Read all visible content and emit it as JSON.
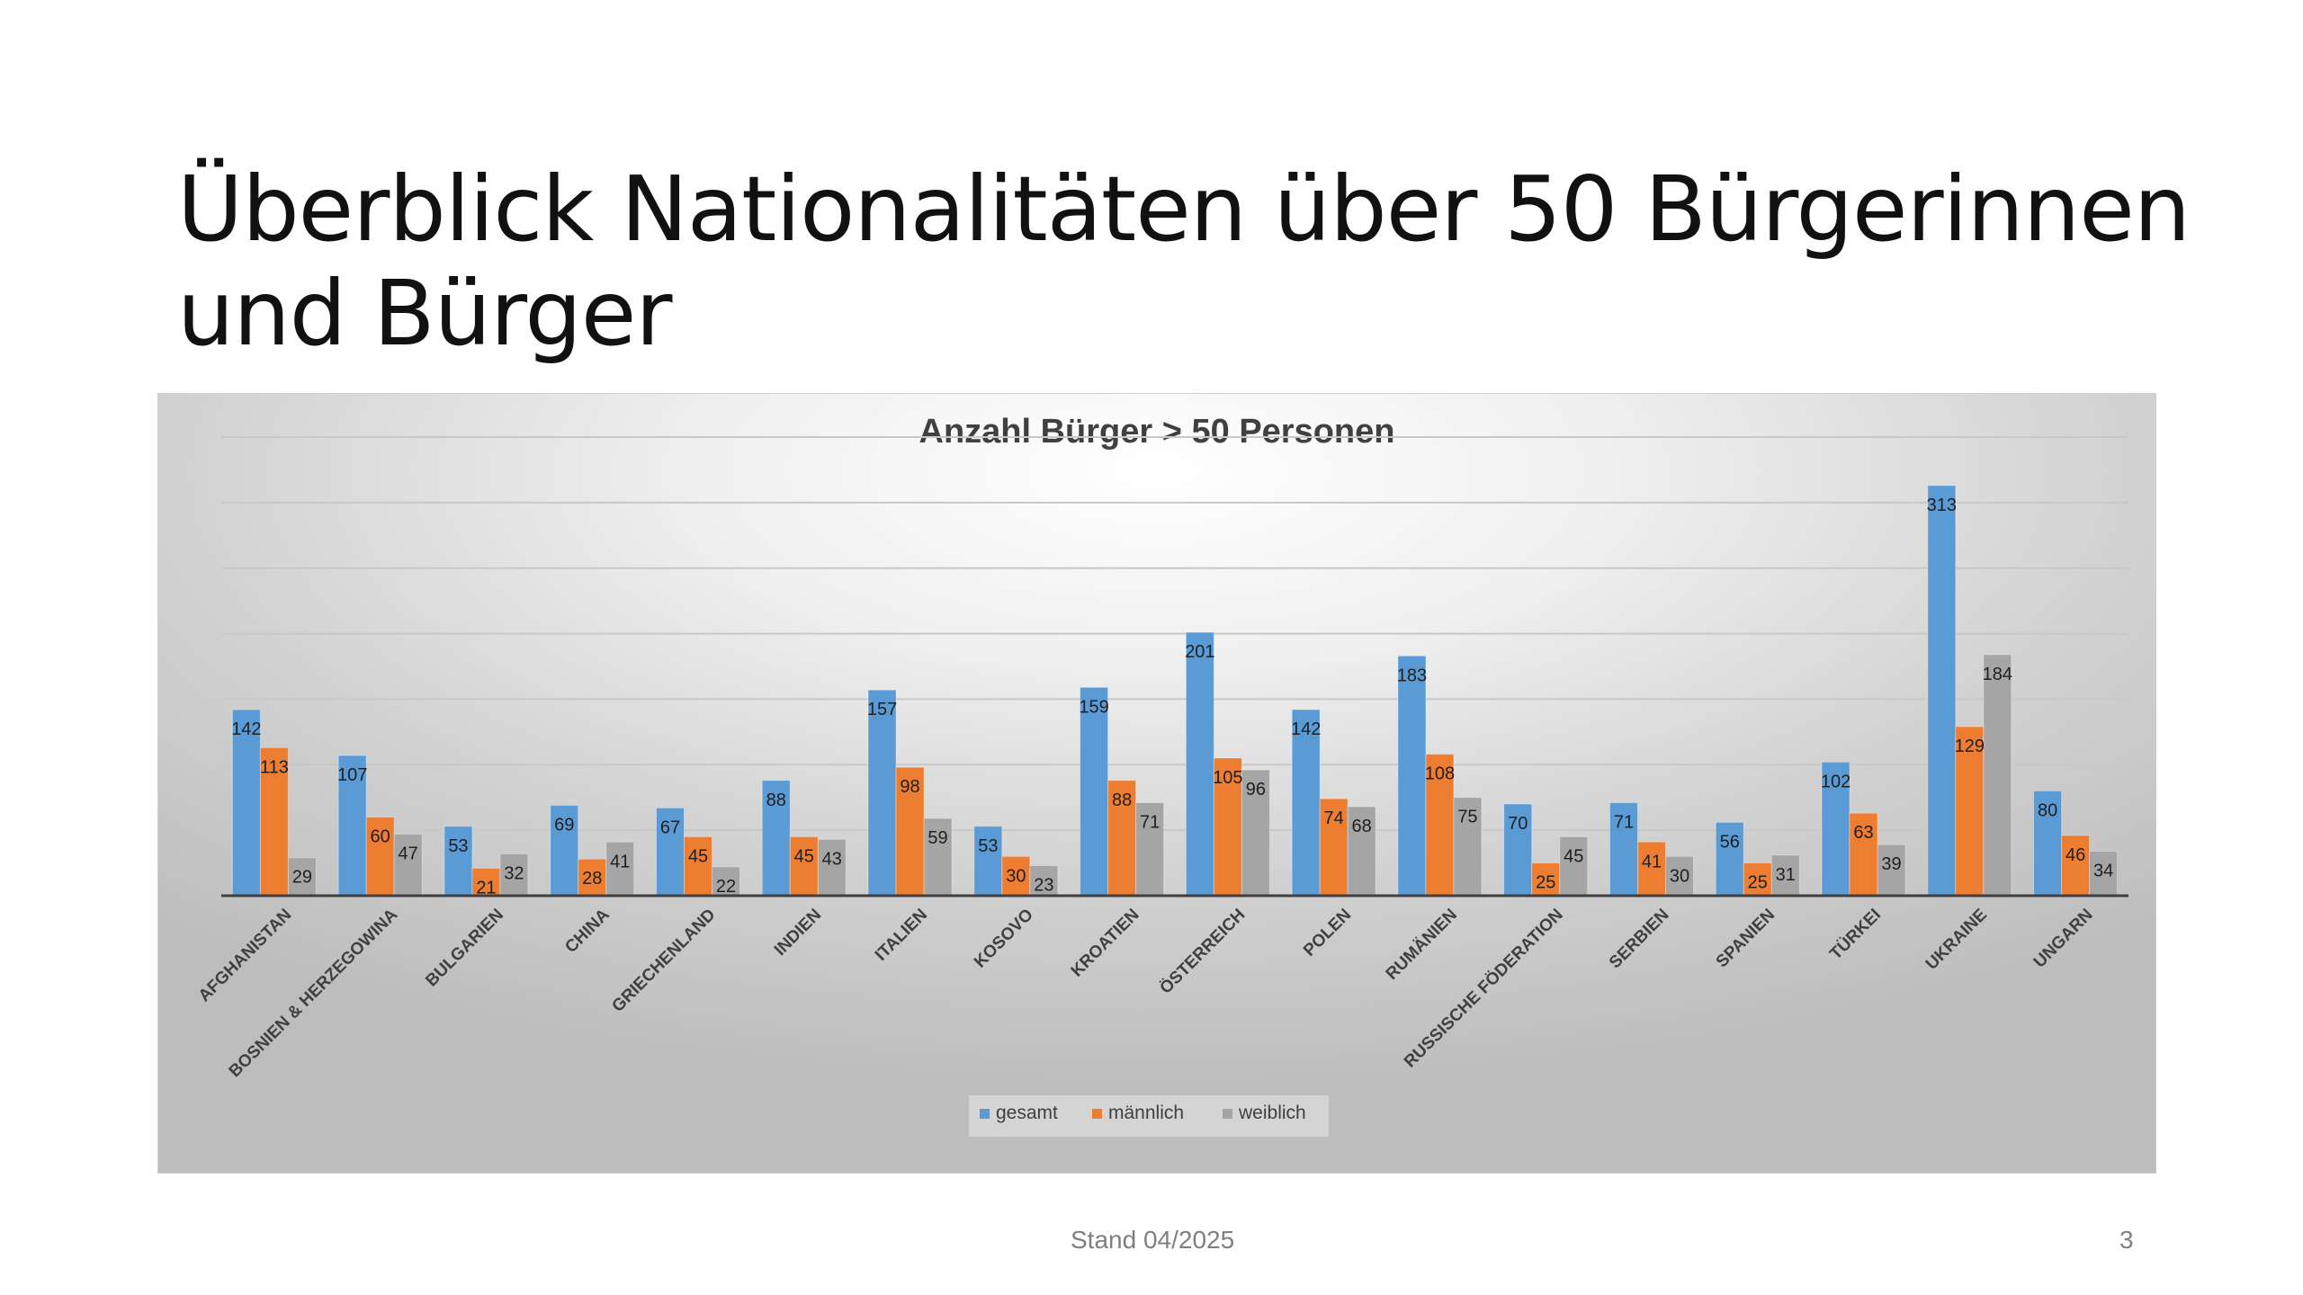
{
  "slide": {
    "title": "Überblick Nationalitäten über 50 Bürgerinnen und Bürger",
    "footer": "Stand 04/2025",
    "page_number": "3"
  },
  "colors": {
    "gesamt": "#5b9bd5",
    "maennlich": "#ed7d31",
    "weiblich": "#a5a5a5",
    "gridline": "#c8c8c8",
    "axis": "#404040"
  },
  "chart_data": {
    "type": "bar",
    "title": "Anzahl Bürger > 50 Personen",
    "xlabel": "",
    "ylabel": "",
    "ylim": [
      0,
      350
    ],
    "grid": true,
    "legend_position": "bottom",
    "categories": [
      "AFGHANISTAN",
      "BOSNIEN & HERZEGOWINA",
      "BULGARIEN",
      "CHINA",
      "GRIECHENLAND",
      "INDIEN",
      "ITALIEN",
      "KOSOVO",
      "KROATIEN",
      "ÖSTERREICH",
      "POLEN",
      "RUMÄNIEN",
      "RUSSISCHE FÖDERATION",
      "SERBIEN",
      "SPANIEN",
      "TÜRKEI",
      "UKRAINE",
      "UNGARN"
    ],
    "series": [
      {
        "name": "gesamt",
        "values": [
          142,
          107,
          53,
          69,
          67,
          88,
          157,
          53,
          159,
          201,
          142,
          183,
          70,
          71,
          56,
          102,
          313,
          80
        ]
      },
      {
        "name": "männlich",
        "values": [
          113,
          60,
          21,
          28,
          45,
          45,
          98,
          30,
          88,
          105,
          74,
          108,
          25,
          41,
          25,
          63,
          129,
          46
        ]
      },
      {
        "name": "weiblich",
        "values": [
          29,
          47,
          32,
          41,
          22,
          43,
          59,
          23,
          71,
          96,
          68,
          75,
          45,
          30,
          31,
          39,
          184,
          34
        ]
      }
    ]
  }
}
